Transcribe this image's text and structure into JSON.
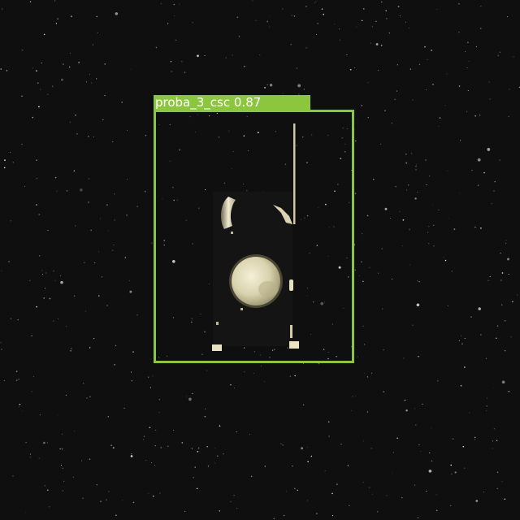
{
  "scene": {
    "description_tag": "star-field-object-detection",
    "background_color": "#0f0f0f",
    "object": "spacecraft"
  },
  "detections": [
    {
      "class_name": "proba_3_csc",
      "confidence": "0.87",
      "color": "#8cc63f"
    }
  ]
}
